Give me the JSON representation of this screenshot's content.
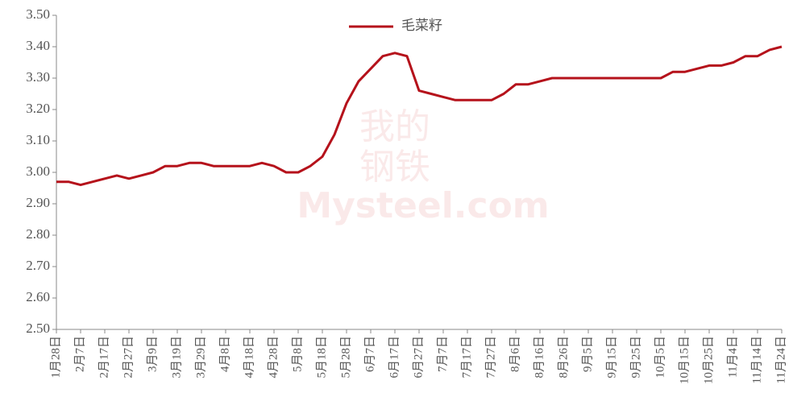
{
  "chart_data": {
    "type": "line",
    "watermark": [
      "我的",
      "钢铁",
      "Mysteel.com"
    ],
    "categories": [
      "1月28日",
      null,
      "2月7日",
      null,
      "2月17日",
      null,
      "2月27日",
      null,
      "3月9日",
      null,
      "3月19日",
      null,
      "3月29日",
      null,
      "4月8日",
      null,
      "4月18日",
      null,
      "4月28日",
      null,
      "5月8日",
      null,
      "5月18日",
      null,
      "5月28日",
      null,
      "6月7日",
      null,
      "6月17日",
      null,
      "6月27日",
      null,
      "7月7日",
      null,
      "7月17日",
      null,
      "7月27日",
      null,
      "8月6日",
      null,
      "8月16日",
      null,
      "8月26日",
      null,
      "9月5日",
      null,
      "9月15日",
      null,
      "9月25日",
      null,
      "10月5日",
      null,
      "10月15日",
      null,
      "10月25日",
      null,
      "11月4日",
      null,
      "11月14日",
      null,
      "11月24日"
    ],
    "series": [
      {
        "name": "毛菜籽",
        "color": "#b5121b",
        "values": [
          2.97,
          2.97,
          2.96,
          2.97,
          2.98,
          2.99,
          2.98,
          2.99,
          3.0,
          3.02,
          3.02,
          3.03,
          3.03,
          3.02,
          3.02,
          3.02,
          3.02,
          3.03,
          3.02,
          3.0,
          3.0,
          3.02,
          3.05,
          3.12,
          3.22,
          3.29,
          3.33,
          3.37,
          3.38,
          3.37,
          3.26,
          3.25,
          3.24,
          3.23,
          3.23,
          3.23,
          3.23,
          3.25,
          3.28,
          3.28,
          3.29,
          3.3,
          3.3,
          3.3,
          3.3,
          3.3,
          3.3,
          3.3,
          3.3,
          3.3,
          3.3,
          3.32,
          3.32,
          3.33,
          3.34,
          3.34,
          3.35,
          3.37,
          3.37,
          3.39,
          3.4
        ]
      }
    ],
    "ylim": [
      2.5,
      3.5
    ],
    "yticks": [
      {
        "value": 2.5,
        "label": "2.50"
      },
      {
        "value": 2.6,
        "label": "2.60"
      },
      {
        "value": 2.7,
        "label": "2.70"
      },
      {
        "value": 2.8,
        "label": "2.80"
      },
      {
        "value": 2.9,
        "label": "2.90"
      },
      {
        "value": 3.0,
        "label": "3.00"
      },
      {
        "value": 3.1,
        "label": "3.10"
      },
      {
        "value": 3.2,
        "label": "3.20"
      },
      {
        "value": 3.3,
        "label": "3.30"
      },
      {
        "value": 3.4,
        "label": "3.40"
      },
      {
        "value": 3.5,
        "label": "3.50"
      }
    ],
    "legend": "top"
  }
}
